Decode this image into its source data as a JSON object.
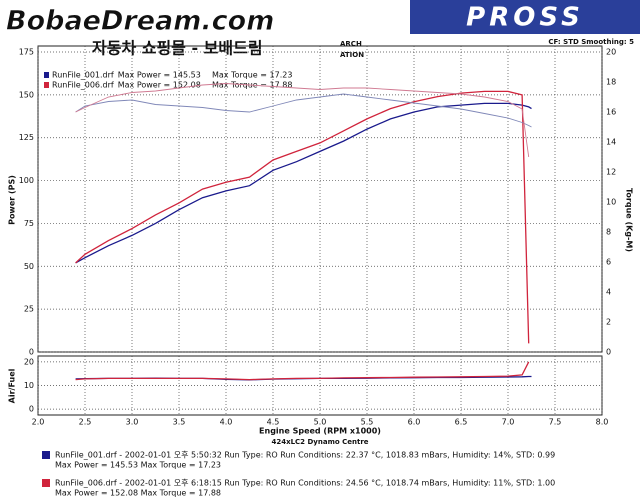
{
  "header": {
    "logo": "BobaeDream.com",
    "subtitle": "자동차 쇼핑몰 - 보배드림",
    "brand": "PROSS",
    "partial_1": "ARCH",
    "partial_2": "ATION",
    "settings": "CF: STD  Smoothing: 5"
  },
  "chart_data": [
    {
      "type": "line",
      "ylabel": "Power (PS)",
      "y2label": "Torque (Kg-M)",
      "x": [
        2.4,
        2.5,
        2.75,
        3,
        3.25,
        3.5,
        3.75,
        4,
        4.25,
        4.5,
        4.75,
        5,
        5.25,
        5.5,
        5.75,
        6,
        6.25,
        6.5,
        6.75,
        7,
        7.15,
        7.22,
        7.25
      ],
      "xlim": [
        2,
        8
      ],
      "xticks": [
        2,
        2.5,
        3,
        3.5,
        4,
        4.5,
        5,
        5.5,
        6,
        6.5,
        7,
        7.5,
        8
      ],
      "ylim": [
        0,
        175
      ],
      "yticks": [
        0,
        25,
        50,
        75,
        100,
        125,
        150,
        175
      ],
      "y2lim": [
        0,
        20
      ],
      "y2ticks": [
        0,
        2,
        4,
        6,
        8,
        10,
        12,
        14,
        16,
        18,
        20
      ],
      "grid": true,
      "series": [
        {
          "name": "RunFile_001.drf",
          "stats": [
            "Max Power = 145.53",
            "Max Torque = 17.23"
          ],
          "color": "#1a1a8c",
          "values": [
            52,
            55,
            62,
            68,
            75,
            83,
            90,
            94,
            97,
            106,
            111,
            117,
            123,
            130,
            136,
            140,
            143,
            144,
            145,
            145,
            144,
            143,
            142
          ]
        },
        {
          "name": "RunFile_006.drf",
          "stats": [
            "Max Power = 152.08",
            "Max Torque = 17.88"
          ],
          "color": "#d0243c",
          "values": [
            52,
            57,
            65,
            72,
            80,
            87,
            95,
            99,
            102,
            112,
            117,
            122,
            129,
            136,
            142,
            146,
            149,
            151,
            152,
            152,
            150,
            5,
            null
          ]
        },
        {
          "color": "#8088b8",
          "axis": "y2",
          "values": [
            16,
            16.4,
            16.7,
            16.8,
            16.5,
            16.4,
            16.3,
            16.1,
            16,
            16.4,
            16.8,
            17,
            17.2,
            17,
            16.8,
            16.6,
            16.4,
            16.2,
            15.9,
            15.6,
            15.3,
            15.1,
            15
          ]
        },
        {
          "color": "#d07a92",
          "axis": "y2",
          "values": [
            16,
            16.3,
            17,
            17.3,
            17.4,
            17.6,
            17.8,
            17.9,
            17.8,
            17.7,
            17.6,
            17.5,
            17.6,
            17.6,
            17.5,
            17.4,
            17.3,
            17.2,
            17,
            16.7,
            16.2,
            13,
            null
          ]
        }
      ]
    },
    {
      "type": "line",
      "ylabel": "Air/Fuel",
      "xlabel": "Engine Speed (RPM x1000)",
      "x": [
        2.4,
        2.5,
        2.75,
        3,
        3.25,
        3.5,
        3.75,
        4,
        4.25,
        4.5,
        4.75,
        5,
        5.25,
        5.5,
        5.75,
        6,
        6.25,
        6.5,
        6.75,
        7,
        7.15,
        7.22,
        7.25
      ],
      "xlim": [
        2,
        8
      ],
      "xticks": [
        {
          "value": 2,
          "label": "2.0"
        },
        2.5,
        {
          "value": 3,
          "label": "3.0"
        },
        3.5,
        {
          "value": 4,
          "label": "4.0"
        },
        4.5,
        {
          "value": 5,
          "label": "5.0"
        },
        5.5,
        {
          "value": 6,
          "label": "6.0"
        },
        6.5,
        {
          "value": 7,
          "label": "7.0"
        },
        7.5,
        {
          "value": 8,
          "label": "8.0"
        }
      ],
      "ylim": [
        -2.5,
        22.5
      ],
      "yticks": [
        0,
        10,
        20
      ],
      "grid": true,
      "series": [
        {
          "color": "#1a1a8c",
          "values": [
            12.8,
            12.9,
            13,
            13,
            13.1,
            13,
            13,
            12.6,
            12.4,
            12.7,
            12.9,
            13,
            13,
            13.1,
            13.2,
            13.3,
            13.4,
            13.4,
            13.5,
            13.6,
            13.7,
            13.8,
            13.8
          ]
        },
        {
          "color": "#d0243c",
          "values": [
            12.5,
            12.8,
            13,
            13,
            13,
            13,
            13,
            12.8,
            12.5,
            12.8,
            13,
            13,
            13.2,
            13.3,
            13.4,
            13.5,
            13.6,
            13.7,
            13.8,
            14,
            14.5,
            20,
            null
          ]
        }
      ]
    }
  ],
  "footer": {
    "centre": "424xLC2 Dynamo Centre",
    "runs": [
      [
        "RunFile_001.drf - 2002-01-01 오후 5:50:32  Run Type: RO  Run Conditions: 22.37 °C, 1018.83 mBars,  Humidity:  14%, STD: 0.99",
        "Max Power = 145.53  Max Torque = 17.23"
      ],
      [
        "RunFile_006.drf - 2002-01-01 오후 6:18:15  Run Type: RO  Run Conditions: 24.56 °C, 1018.74 mBars,  Humidity:  11%, STD: 1.00",
        "Max Power = 152.08  Max Torque = 17.88"
      ]
    ]
  }
}
